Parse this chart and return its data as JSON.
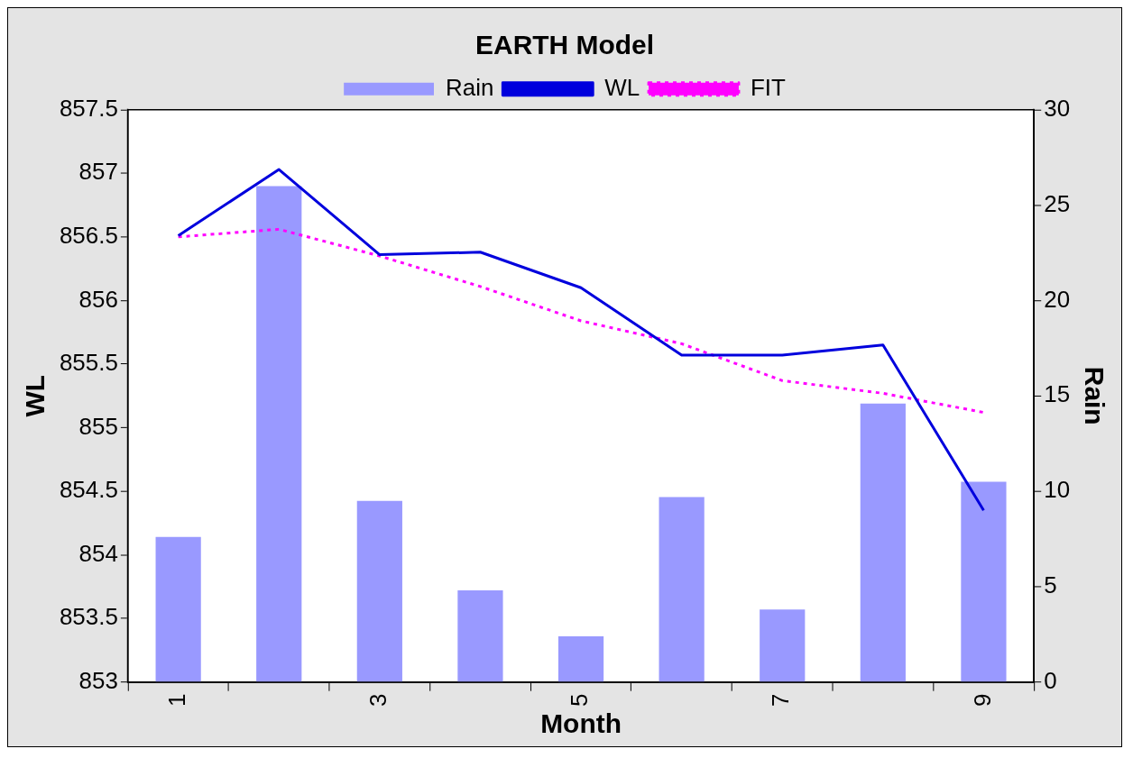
{
  "chart_data": {
    "type": "bar",
    "title": "EARTH Model",
    "xlabel": "Month",
    "ylabel": "WL",
    "y2label": "Rain",
    "categories": [
      "1",
      null,
      "3",
      null,
      "5",
      null,
      "7",
      null,
      "9"
    ],
    "series": [
      {
        "name": "Rain",
        "axis": "y2",
        "color": "#9999ff",
        "values": [
          7.6,
          26.0,
          9.5,
          4.8,
          2.4,
          9.7,
          3.8,
          14.6,
          10.5
        ]
      },
      {
        "name": "WL",
        "type": "line",
        "color": "#0000dd",
        "line_style": "solid",
        "values": [
          856.51,
          857.03,
          856.36,
          856.38,
          856.1,
          855.57,
          855.57,
          855.65,
          854.35
        ]
      },
      {
        "name": "FIT",
        "type": "line",
        "color": "#ff00ff",
        "line_style": "dotted",
        "values": [
          856.5,
          856.56,
          856.35,
          856.11,
          855.84,
          855.66,
          855.37,
          855.27,
          855.12
        ]
      }
    ],
    "ylim": [
      853,
      857.5
    ],
    "yticks": [
      853,
      853.5,
      854,
      854.5,
      855,
      855.5,
      856,
      856.5,
      857,
      857.5
    ],
    "y2lim": [
      0,
      30
    ],
    "y2ticks": [
      0,
      5,
      10,
      15,
      20,
      25,
      30
    ],
    "legend": "top",
    "grid": false,
    "marker": "none"
  }
}
